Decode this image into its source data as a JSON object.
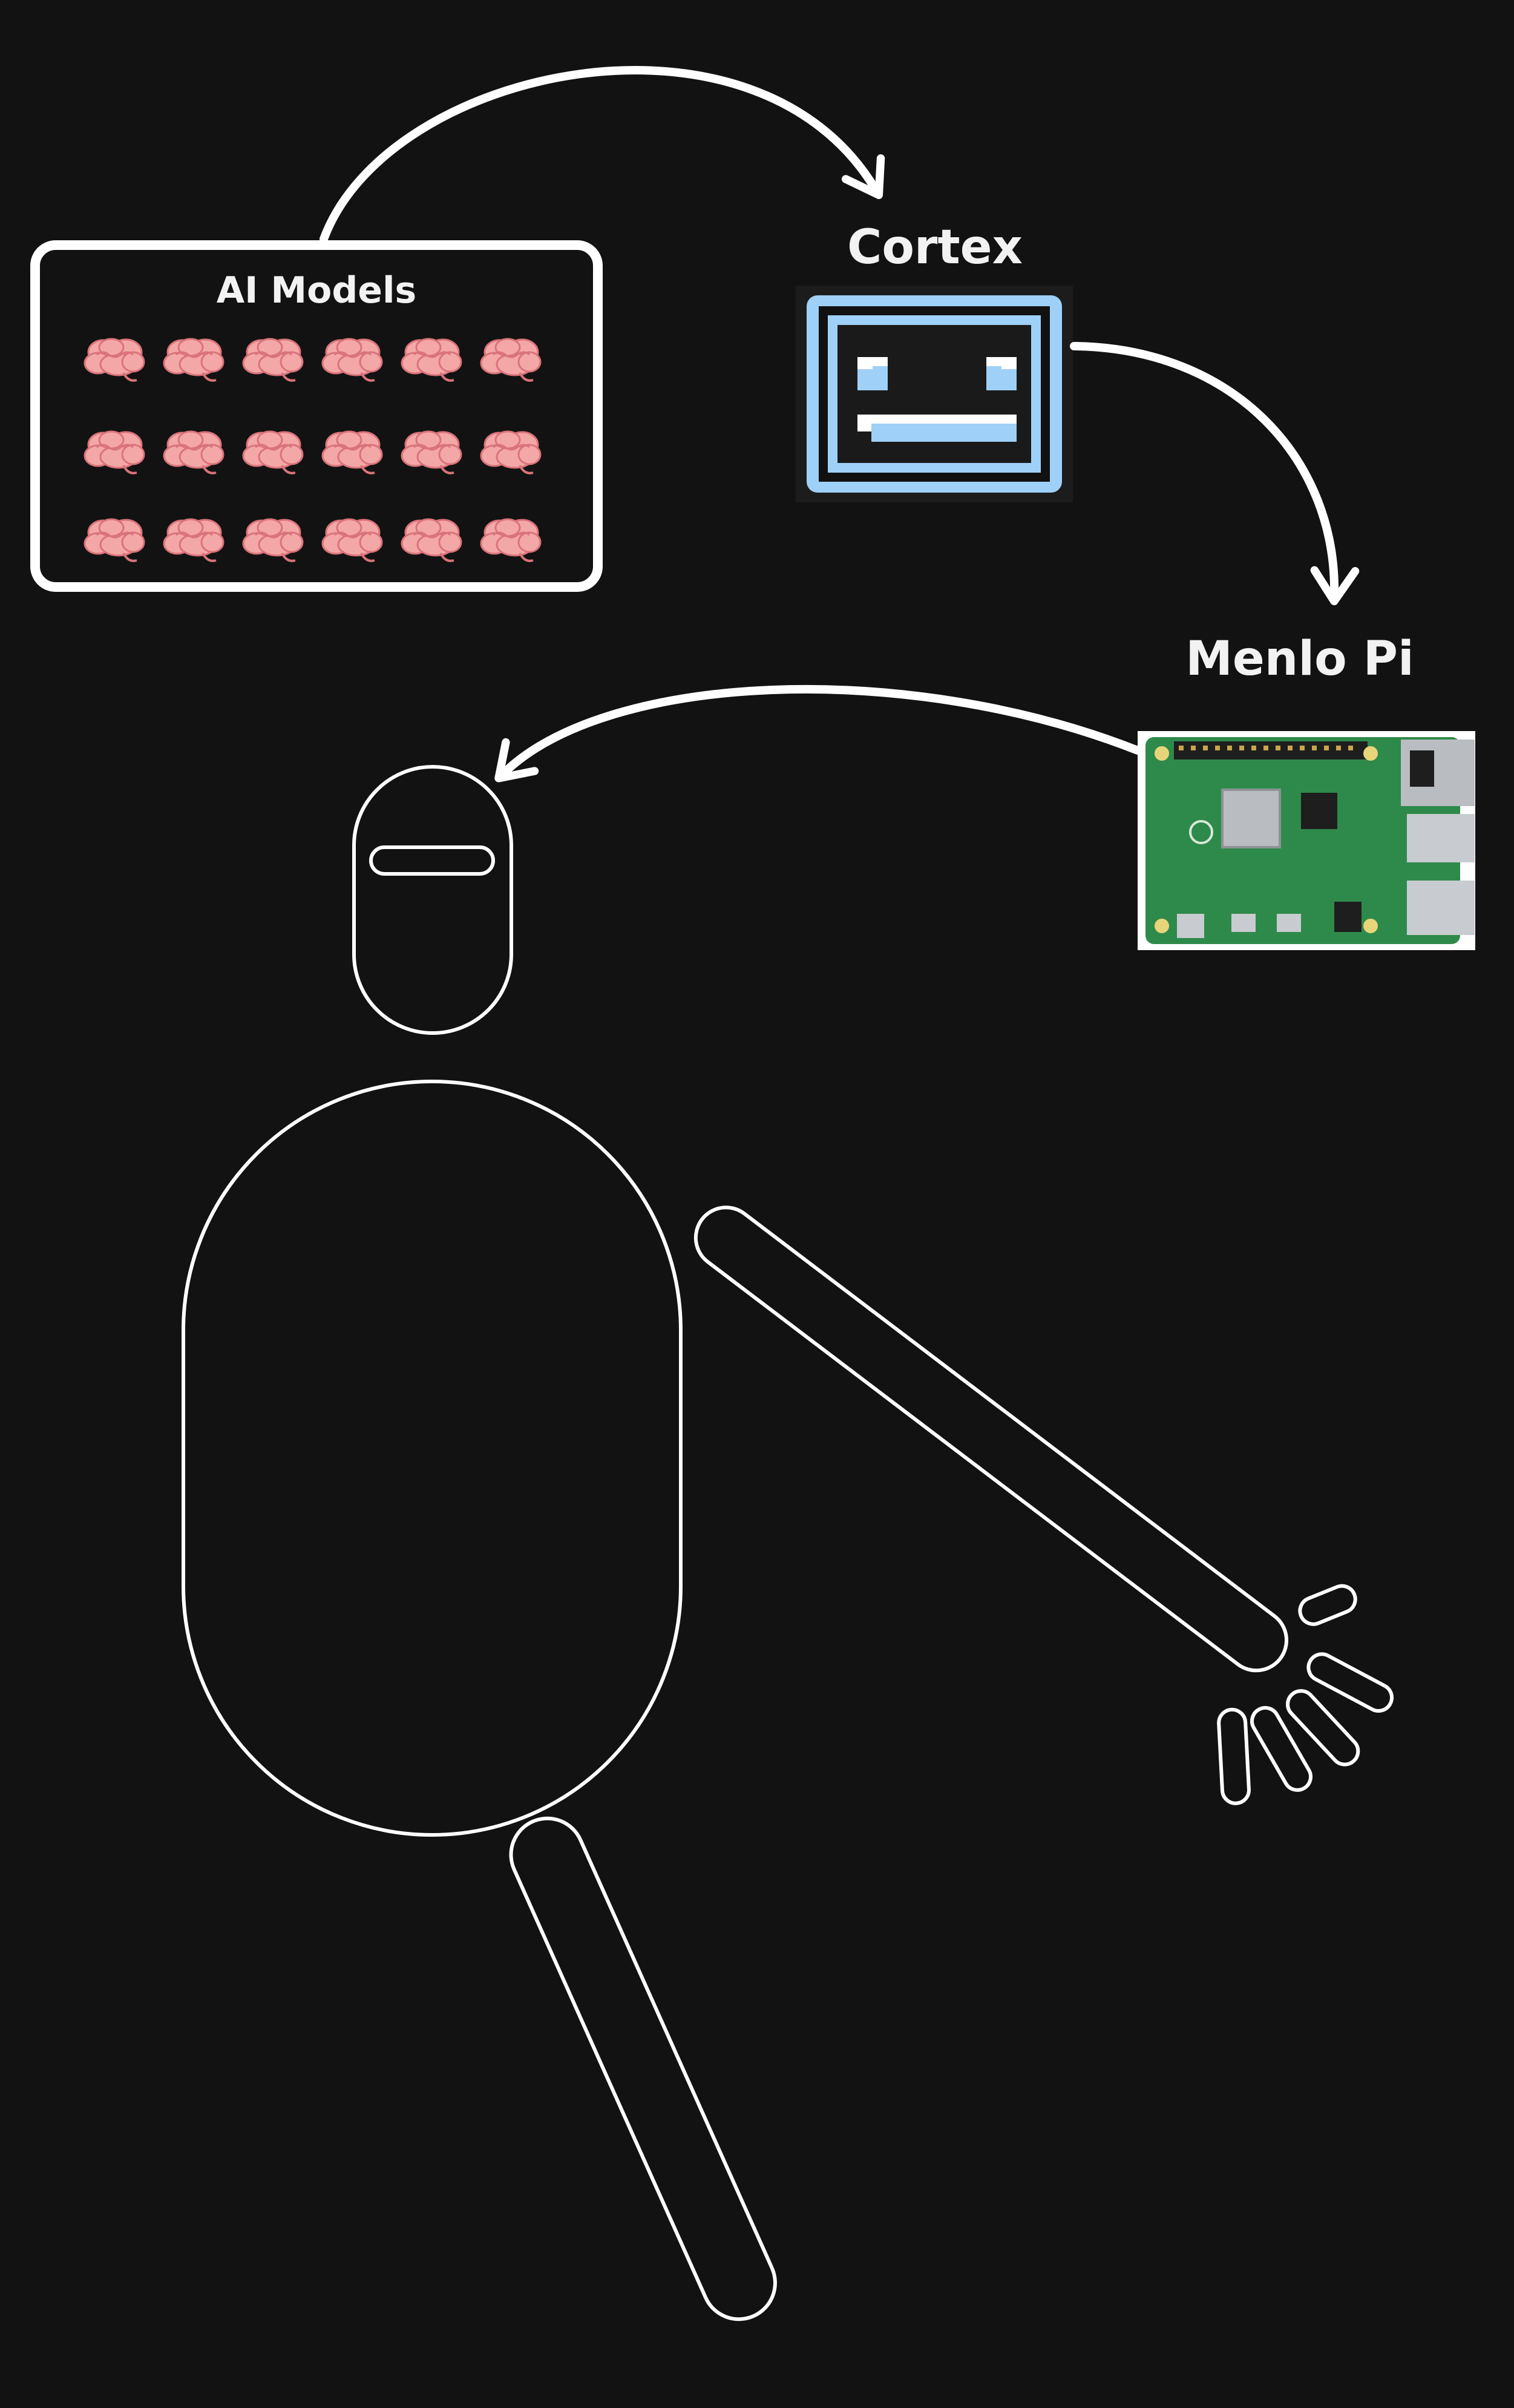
{
  "labels": {
    "ai_models": "AI Models",
    "cortex": "Cortex",
    "menlo_pi": "Menlo Pi"
  },
  "model_grid": {
    "rows": 3,
    "cols": 6,
    "icon": "brain-icon"
  },
  "colors": {
    "background": "#121212",
    "stroke": "#ffffff",
    "brain": "#f4a7a7",
    "brain_outline": "#d9737a",
    "cortex_frame": "#9fd0f7",
    "cortex_screen": "#1a1a1a",
    "board_green": "#2e8a4a"
  }
}
